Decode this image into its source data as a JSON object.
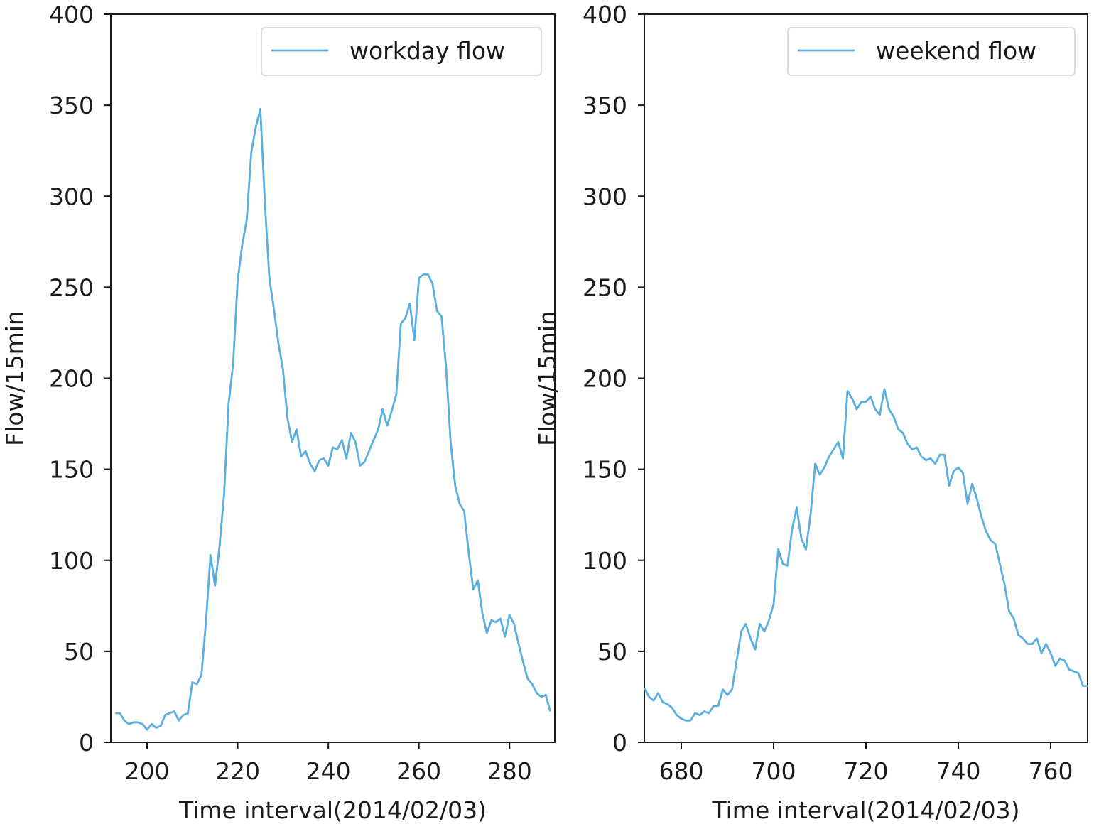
{
  "chart_data": [
    {
      "type": "line",
      "xlabel": "Time interval(2014/02/03)",
      "ylabel": "Flow/15min",
      "xlim": [
        192,
        290
      ],
      "ylim": [
        0,
        400
      ],
      "xticks": [
        200,
        220,
        240,
        260,
        280
      ],
      "yticks": [
        0,
        50,
        100,
        150,
        200,
        250,
        300,
        350,
        400
      ],
      "grid": false,
      "legend_position": "top-right",
      "series": [
        {
          "name": "workday flow",
          "color": "#5aaee0",
          "x": [
            193,
            194,
            195,
            196,
            197,
            198,
            199,
            200,
            201,
            202,
            203,
            204,
            205,
            206,
            207,
            208,
            209,
            210,
            211,
            212,
            213,
            214,
            215,
            216,
            217,
            218,
            219,
            220,
            221,
            222,
            223,
            224,
            225,
            226,
            227,
            228,
            229,
            230,
            231,
            232,
            233,
            234,
            235,
            236,
            237,
            238,
            239,
            240,
            241,
            242,
            243,
            244,
            245,
            246,
            247,
            248,
            249,
            250,
            251,
            252,
            253,
            254,
            255,
            256,
            257,
            258,
            259,
            260,
            261,
            262,
            263,
            264,
            265,
            266,
            267,
            268,
            269,
            270,
            271,
            272,
            273,
            274,
            275,
            276,
            277,
            278,
            279,
            280,
            281,
            282,
            283,
            284,
            285,
            286,
            287,
            288,
            289
          ],
          "values": [
            16,
            16,
            12,
            10,
            11,
            11,
            10,
            7,
            10,
            8,
            9,
            15,
            16,
            17,
            12,
            15,
            16,
            33,
            32,
            37,
            66,
            103,
            86,
            108,
            136,
            186,
            208,
            254,
            273,
            287,
            324,
            338,
            348,
            297,
            255,
            238,
            219,
            205,
            178,
            165,
            172,
            157,
            160,
            153,
            149,
            155,
            156,
            152,
            162,
            161,
            166,
            156,
            170,
            165,
            152,
            154,
            160,
            166,
            172,
            183,
            174,
            182,
            191,
            230,
            233,
            241,
            221,
            255,
            257,
            257,
            252,
            237,
            234,
            206,
            165,
            141,
            131,
            127,
            104,
            84,
            89,
            71,
            60,
            67,
            66,
            68,
            58,
            70,
            65,
            54,
            44,
            35,
            32,
            27,
            25,
            26,
            17
          ]
        }
      ]
    },
    {
      "type": "line",
      "xlabel": "Time interval(2014/02/03)",
      "ylabel": "Flow/15min",
      "xlim": [
        672,
        768
      ],
      "ylim": [
        0,
        400
      ],
      "xticks": [
        680,
        700,
        720,
        740,
        760
      ],
      "yticks": [
        0,
        50,
        100,
        150,
        200,
        250,
        300,
        350,
        400
      ],
      "grid": false,
      "legend_position": "top-right",
      "series": [
        {
          "name": "weekend flow",
          "color": "#5aaee0",
          "x": [
            672,
            673,
            674,
            675,
            676,
            677,
            678,
            679,
            680,
            681,
            682,
            683,
            684,
            685,
            686,
            687,
            688,
            689,
            690,
            691,
            692,
            693,
            694,
            695,
            696,
            697,
            698,
            699,
            700,
            701,
            702,
            703,
            704,
            705,
            706,
            707,
            708,
            709,
            710,
            711,
            712,
            713,
            714,
            715,
            716,
            717,
            718,
            719,
            720,
            721,
            722,
            723,
            724,
            725,
            726,
            727,
            728,
            729,
            730,
            731,
            732,
            733,
            734,
            735,
            736,
            737,
            738,
            739,
            740,
            741,
            742,
            743,
            744,
            745,
            746,
            747,
            748,
            749,
            750,
            751,
            752,
            753,
            754,
            755,
            756,
            757,
            758,
            759,
            760,
            761,
            762,
            763,
            764,
            765,
            766,
            767,
            768
          ],
          "values": [
            30,
            25,
            23,
            27,
            22,
            21,
            19,
            15,
            13,
            12,
            12,
            16,
            15,
            17,
            16,
            20,
            20,
            29,
            26,
            29,
            45,
            61,
            65,
            57,
            51,
            65,
            61,
            67,
            76,
            106,
            98,
            97,
            117,
            129,
            112,
            106,
            125,
            153,
            147,
            151,
            157,
            161,
            165,
            156,
            193,
            189,
            183,
            187,
            187,
            190,
            183,
            180,
            194,
            183,
            179,
            172,
            170,
            164,
            161,
            162,
            157,
            155,
            156,
            153,
            158,
            158,
            141,
            149,
            151,
            148,
            131,
            142,
            134,
            124,
            116,
            111,
            109,
            98,
            87,
            72,
            68,
            59,
            57,
            54,
            54,
            57,
            49,
            54,
            49,
            42,
            46,
            45,
            40,
            39,
            38,
            31,
            31
          ]
        }
      ]
    }
  ]
}
